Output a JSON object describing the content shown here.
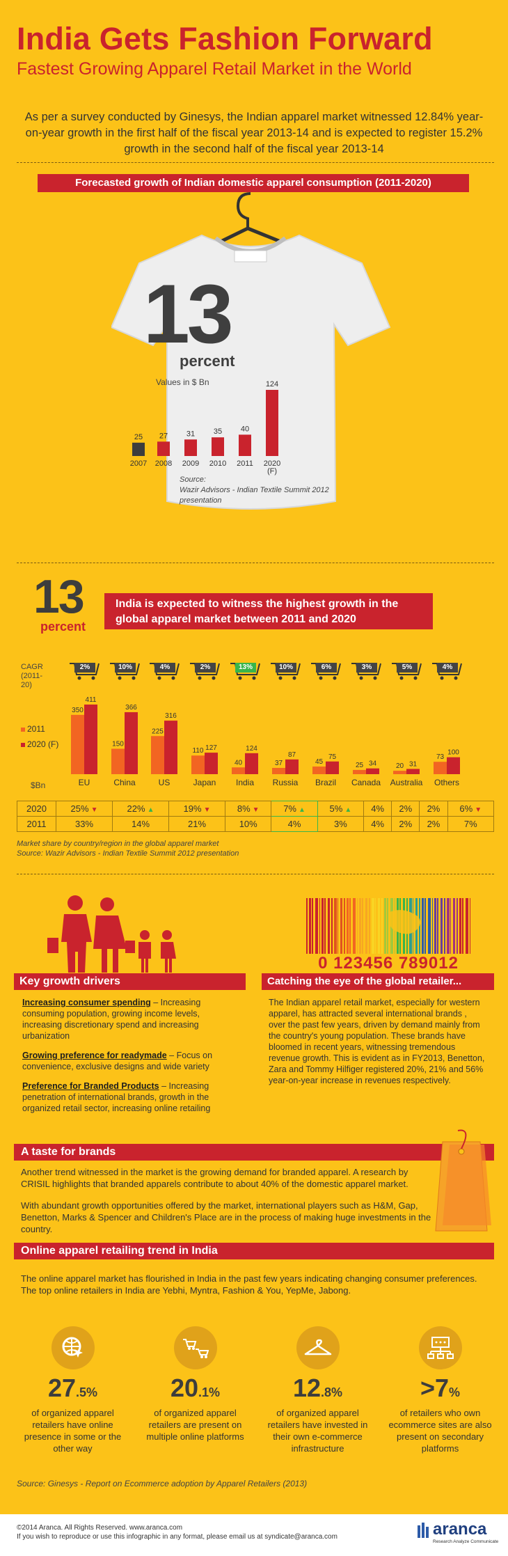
{
  "header": {
    "title": "India Gets Fashion Forward",
    "subtitle": "Fastest Growing Apparel Retail Market in the World",
    "intro": "As per a survey conducted by Ginesys, the Indian apparel market witnessed 12.84% year-on-year growth in the first half of the fiscal year 2013-14 and is expected to register 15.2% growth in the second half of the fiscal year 2013-14"
  },
  "forecast": {
    "banner": "Forecasted growth of Indian domestic apparel consumption (2011-2020)",
    "big_number": "13",
    "big_unit": "percent",
    "values_label": "Values in $ Bn",
    "source_line1": "Source:",
    "source_line2": "Wazir Advisors - Indian Textile Summit 2012",
    "source_line3": "presentation",
    "chart_data": {
      "type": "bar",
      "categories": [
        "2007",
        "2008",
        "2009",
        "2010",
        "2011",
        "2020 (F)"
      ],
      "values": [
        25,
        27,
        31,
        35,
        40,
        124
      ],
      "ylabel": "Values in $ Bn"
    }
  },
  "global": {
    "big_number": "13",
    "big_unit": "percent",
    "banner": "India is expected to witness the highest growth in the global apparel market between 2011 and 2020",
    "cagr_label": "CAGR (2011-20)",
    "cagr": [
      "2%",
      "10%",
      "4%",
      "2%",
      "13%",
      "10%",
      "6%",
      "3%",
      "5%",
      "4%"
    ],
    "legend_2011": "2011",
    "legend_2020": "2020 (F)",
    "unit_label": "$Bn",
    "chart_data": {
      "type": "bar",
      "categories": [
        "EU",
        "China",
        "US",
        "Japan",
        "India",
        "Russia",
        "Brazil",
        "Canada",
        "Australia",
        "Others"
      ],
      "series": [
        {
          "name": "2011",
          "values": [
            350,
            150,
            225,
            110,
            40,
            37,
            45,
            25,
            20,
            73
          ]
        },
        {
          "name": "2020 (F)",
          "values": [
            411,
            366,
            316,
            127,
            124,
            87,
            75,
            34,
            31,
            100
          ]
        }
      ],
      "ylabel": "$Bn",
      "legend": "left"
    },
    "share_rows": [
      {
        "year": "2020",
        "cells": [
          "25%",
          "22%",
          "19%",
          "8%",
          "7%",
          "5%",
          "4%",
          "2%",
          "2%",
          "6%"
        ],
        "arrows": [
          "down",
          "up",
          "down",
          "down",
          "up",
          "up",
          "",
          "",
          "",
          "down"
        ]
      },
      {
        "year": "2011",
        "cells": [
          "33%",
          "14%",
          "21%",
          "10%",
          "4%",
          "3%",
          "4%",
          "2%",
          "2%",
          "7%"
        ]
      }
    ],
    "note": "Market share by country/region in the global apparel market",
    "source": "Source: Wazir Advisors - Indian Textile Summit 2012 presentation"
  },
  "drivers": {
    "banner": "Key growth drivers",
    "items": [
      {
        "head": "Increasing consumer spending",
        "text": " – Increasing consuming population, growing income levels, increasing discretionary spend and increasing urbanization"
      },
      {
        "head": "Growing preference for readymade",
        "text": " – Focus on convenience, exclusive designs and wide variety"
      },
      {
        "head": "Preference for Branded Products",
        "text": " – Increasing penetration of international brands, growth in the organized retail sector, increasing online retailing"
      }
    ]
  },
  "global_retailer": {
    "barcode_digits": "0 123456 789012",
    "banner": "Catching the eye of the global retailer...",
    "text": "The Indian apparel retail market, especially for western apparel, has attracted several international brands , over the past few years, driven by demand mainly from the country's young population. These brands have bloomed in recent years, witnessing tremendous revenue growth. This is evident as in FY2013, Benetton, Zara and Tommy Hilfiger registered 20%, 21% and 56% year-on-year increase in revenues respectively."
  },
  "brands": {
    "banner": "A taste for brands",
    "p1": "Another trend witnessed in the market is the growing demand for branded apparel. A research by CRISIL highlights that branded apparels contribute to about 40% of the domestic apparel market.",
    "p2": "With abundant growth opportunities offered by the market, international players such as H&M, Gap, Benetton, Marks & Spencer and Children's Place are in the process of making huge investments in the country."
  },
  "online": {
    "banner": "Online apparel retailing trend in India",
    "text": "The online apparel market has flourished in India in the past few years indicating changing consumer preferences. The top online retailers in India are Yebhi, Myntra, Fashion & You, YepMe, Jabong.",
    "stats": [
      {
        "icon": "globe-cursor-icon",
        "num": "27",
        "dec": ".5%",
        "desc": "of organized apparel retailers have online presence in some or the other way"
      },
      {
        "icon": "shopping-carts-icon",
        "num": "20",
        "dec": ".1%",
        "desc": "of organized apparel retailers are present on multiple online platforms"
      },
      {
        "icon": "hanger-icon",
        "num": "12",
        "dec": ".8%",
        "desc": "of organized apparel retailers have invested in their own e-commerce infrastructure"
      },
      {
        "icon": "network-icon",
        "num": ">7",
        "dec": "%",
        "desc": "of retailers who own ecommerce sites are also present on secondary platforms"
      }
    ],
    "source": "Source: Ginesys - Report on Ecommerce adoption by Apparel Retailers (2013)"
  },
  "footer": {
    "copyright": "©2014 Aranca. All Rights Reserved. www.aranca.com",
    "reuse": "If you wish to reproduce or use this infographic in any format, please email us at syndicate@aranca.com",
    "logo": "aranca",
    "tagline": "Research Analyze Communicate"
  },
  "colors": {
    "background": "#fcc218",
    "red": "#c9232d",
    "orange": "#f26522",
    "dark": "#3d3d3d",
    "green": "#39b54a"
  }
}
